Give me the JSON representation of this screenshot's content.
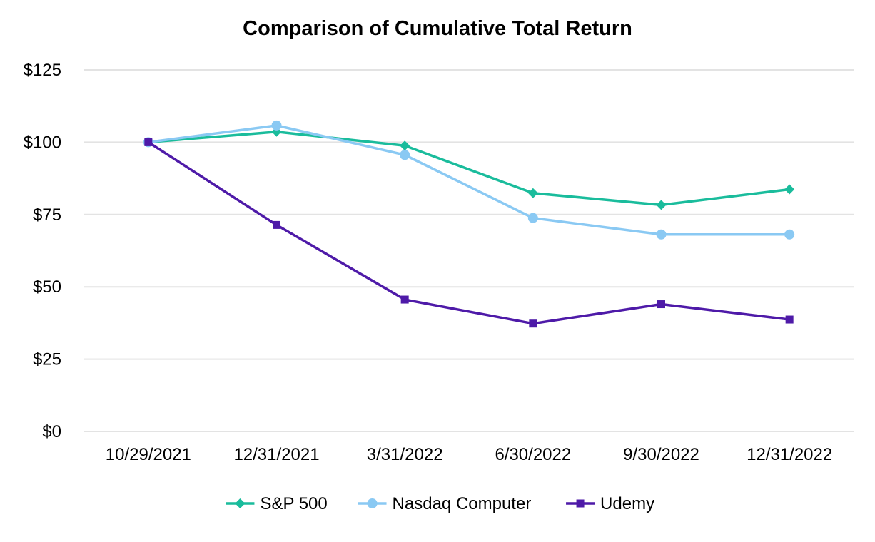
{
  "chart_data": {
    "type": "line",
    "title": "Comparison of Cumulative Total Return",
    "xlabel": "",
    "ylabel": "",
    "categories": [
      "10/29/2021",
      "12/31/2021",
      "3/31/2022",
      "6/30/2022",
      "9/30/2022",
      "12/31/2022"
    ],
    "y_ticks": [
      0,
      25,
      50,
      75,
      100,
      125
    ],
    "y_tick_labels": [
      "$0",
      "$25",
      "$50",
      "$75",
      "$100",
      "$125"
    ],
    "ylim": [
      0,
      125
    ],
    "grid": "horizontal",
    "legend_position": "bottom",
    "series": [
      {
        "name": "S&P 500",
        "color": "#1abc9c",
        "marker": "diamond",
        "values": [
          100,
          103.6,
          98.8,
          82.4,
          78.3,
          83.7
        ]
      },
      {
        "name": "Nasdaq Computer",
        "color": "#8ac9f3",
        "marker": "circle",
        "values": [
          100,
          105.8,
          95.6,
          73.8,
          68.1,
          68.1
        ]
      },
      {
        "name": "Udemy",
        "color": "#4e1aa8",
        "marker": "square",
        "values": [
          100,
          71.4,
          45.6,
          37.3,
          44.0,
          38.7
        ]
      }
    ]
  }
}
